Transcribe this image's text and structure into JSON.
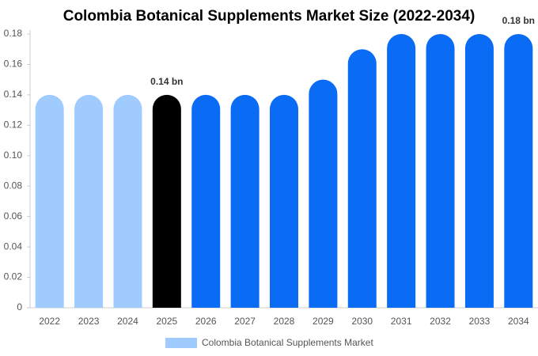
{
  "chart_data": {
    "type": "bar",
    "title": "Colombia Botanical Supplements Market Size (2022-2034)",
    "categories": [
      "2022",
      "2023",
      "2024",
      "2025",
      "2026",
      "2027",
      "2028",
      "2029",
      "2030",
      "2031",
      "2032",
      "2033",
      "2034"
    ],
    "series": [
      {
        "name": "Colombia Botanical Supplements Market",
        "color": "#a0cbff",
        "colors": [
          "#a0cbff",
          "#a0cbff",
          "#a0cbff",
          "#000000",
          "#0a6cf5",
          "#0a6cf5",
          "#0a6cf5",
          "#0a6cf5",
          "#0a6cf5",
          "#0a6cf5",
          "#0a6cf5",
          "#0a6cf5",
          "#0a6cf5"
        ],
        "values": [
          0.14,
          0.14,
          0.14,
          0.14,
          0.14,
          0.14,
          0.14,
          0.15,
          0.17,
          0.18,
          0.18,
          0.18,
          0.18
        ],
        "value_labels": [
          null,
          null,
          null,
          "0.14 bn",
          null,
          null,
          null,
          null,
          null,
          null,
          null,
          null,
          "0.18 bn"
        ]
      }
    ],
    "ylim": [
      0,
      0.18
    ],
    "yticks": [
      0,
      0.02,
      0.04,
      0.06,
      0.08,
      {
        "value": 0.1,
        "label": "0.10"
      },
      0.12,
      0.14,
      0.16,
      0.18
    ],
    "grid": false,
    "legend": "bottom"
  }
}
